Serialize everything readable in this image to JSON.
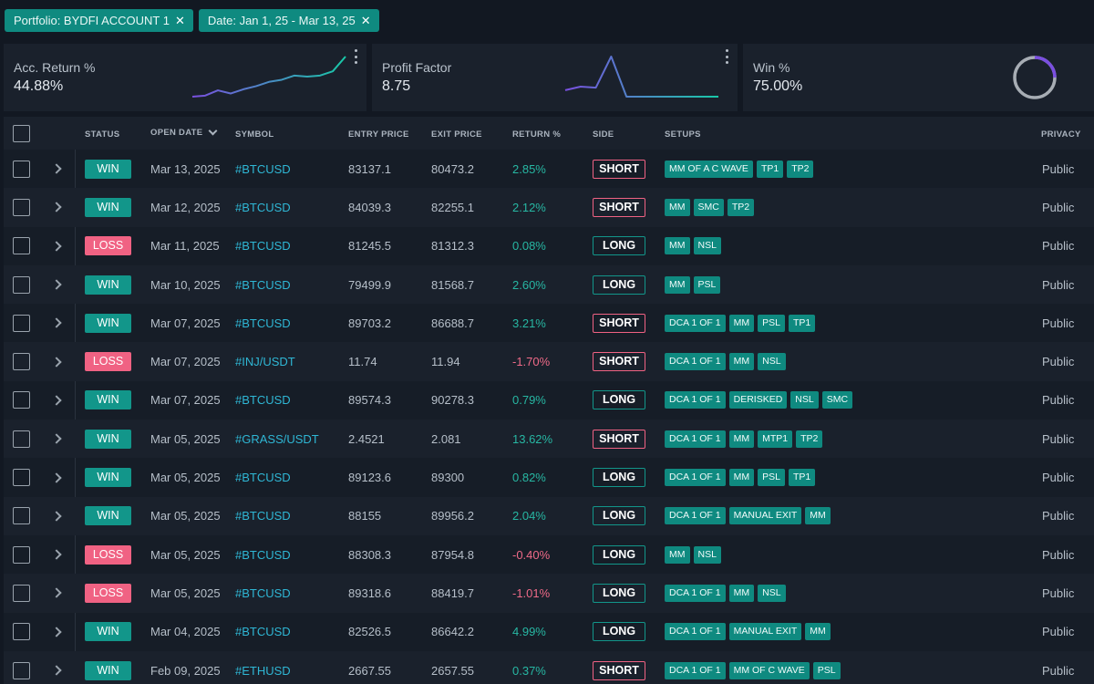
{
  "filters": {
    "portfolio": "Portfolio:  BYDFI ACCOUNT 1",
    "date": "Date:  Jan 1, 25 - Mar 13, 25",
    "close_glyph": "✕"
  },
  "cards": {
    "acc_return": {
      "label": "Acc. Return %",
      "value": "44.88%",
      "sparkline": [
        4,
        5,
        10,
        7,
        11,
        14,
        18,
        20,
        24,
        23,
        24,
        28,
        42
      ]
    },
    "profit_factor": {
      "label": "Profit Factor",
      "value": "8.75",
      "sparkline": [
        1.5,
        2.2,
        2.0,
        8.2,
        0.2,
        0.2,
        0.2,
        0.2,
        0.2,
        0.2,
        0.2
      ]
    },
    "win_rate": {
      "label": "Win %",
      "value": "75.00%",
      "ratio": 0.75
    }
  },
  "table": {
    "headers": {
      "status": "STATUS",
      "open_date": "OPEN DATE",
      "symbol": "SYMBOL",
      "entry_price": "ENTRY PRICE",
      "exit_price": "EXIT PRICE",
      "return": "RETURN %",
      "side": "SIDE",
      "setups": "SETUPS",
      "privacy": "PRIVACY"
    },
    "rows": [
      {
        "status": "WIN",
        "date": "Mar 13, 2025",
        "symbol": "#BTCUSD",
        "entry": "83137.1",
        "exit": "80473.2",
        "ret": "2.85%",
        "side": "SHORT",
        "setups": [
          "MM OF A C WAVE",
          "TP1",
          "TP2"
        ],
        "privacy": "Public"
      },
      {
        "status": "WIN",
        "date": "Mar 12, 2025",
        "symbol": "#BTCUSD",
        "entry": "84039.3",
        "exit": "82255.1",
        "ret": "2.12%",
        "side": "SHORT",
        "setups": [
          "MM",
          "SMC",
          "TP2"
        ],
        "privacy": "Public"
      },
      {
        "status": "LOSS",
        "date": "Mar 11, 2025",
        "symbol": "#BTCUSD",
        "entry": "81245.5",
        "exit": "81312.3",
        "ret": "0.08%",
        "side": "LONG",
        "setups": [
          "MM",
          "NSL"
        ],
        "privacy": "Public"
      },
      {
        "status": "WIN",
        "date": "Mar 10, 2025",
        "symbol": "#BTCUSD",
        "entry": "79499.9",
        "exit": "81568.7",
        "ret": "2.60%",
        "side": "LONG",
        "setups": [
          "MM",
          "PSL"
        ],
        "privacy": "Public"
      },
      {
        "status": "WIN",
        "date": "Mar 07, 2025",
        "symbol": "#BTCUSD",
        "entry": "89703.2",
        "exit": "86688.7",
        "ret": "3.21%",
        "side": "SHORT",
        "setups": [
          "DCA 1 OF 1",
          "MM",
          "PSL",
          "TP1"
        ],
        "privacy": "Public"
      },
      {
        "status": "LOSS",
        "date": "Mar 07, 2025",
        "symbol": "#INJ/USDT",
        "entry": "11.74",
        "exit": "11.94",
        "ret": "-1.70%",
        "side": "SHORT",
        "setups": [
          "DCA 1 OF 1",
          "MM",
          "NSL"
        ],
        "privacy": "Public"
      },
      {
        "status": "WIN",
        "date": "Mar 07, 2025",
        "symbol": "#BTCUSD",
        "entry": "89574.3",
        "exit": "90278.3",
        "ret": "0.79%",
        "side": "LONG",
        "setups": [
          "DCA 1 OF 1",
          "DERISKED",
          "NSL",
          "SMC"
        ],
        "privacy": "Public"
      },
      {
        "status": "WIN",
        "date": "Mar 05, 2025",
        "symbol": "#GRASS/USDT",
        "entry": "2.4521",
        "exit": "2.081",
        "ret": "13.62%",
        "side": "SHORT",
        "setups": [
          "DCA 1 OF 1",
          "MM",
          "MTP1",
          "TP2"
        ],
        "privacy": "Public"
      },
      {
        "status": "WIN",
        "date": "Mar 05, 2025",
        "symbol": "#BTCUSD",
        "entry": "89123.6",
        "exit": "89300",
        "ret": "0.82%",
        "side": "LONG",
        "setups": [
          "DCA 1 OF 1",
          "MM",
          "PSL",
          "TP1"
        ],
        "privacy": "Public"
      },
      {
        "status": "WIN",
        "date": "Mar 05, 2025",
        "symbol": "#BTCUSD",
        "entry": "88155",
        "exit": "89956.2",
        "ret": "2.04%",
        "side": "LONG",
        "setups": [
          "DCA 1 OF 1",
          "MANUAL EXIT",
          "MM"
        ],
        "privacy": "Public"
      },
      {
        "status": "LOSS",
        "date": "Mar 05, 2025",
        "symbol": "#BTCUSD",
        "entry": "88308.3",
        "exit": "87954.8",
        "ret": "-0.40%",
        "side": "LONG",
        "setups": [
          "MM",
          "NSL"
        ],
        "privacy": "Public"
      },
      {
        "status": "LOSS",
        "date": "Mar 05, 2025",
        "symbol": "#BTCUSD",
        "entry": "89318.6",
        "exit": "88419.7",
        "ret": "-1.01%",
        "side": "LONG",
        "setups": [
          "DCA 1 OF 1",
          "MM",
          "NSL"
        ],
        "privacy": "Public"
      },
      {
        "status": "WIN",
        "date": "Mar 04, 2025",
        "symbol": "#BTCUSD",
        "entry": "82526.5",
        "exit": "86642.2",
        "ret": "4.99%",
        "side": "LONG",
        "setups": [
          "DCA 1 OF 1",
          "MANUAL EXIT",
          "MM"
        ],
        "privacy": "Public"
      },
      {
        "status": "WIN",
        "date": "Feb 09, 2025",
        "symbol": "#ETHUSD",
        "entry": "2667.55",
        "exit": "2657.55",
        "ret": "0.37%",
        "side": "SHORT",
        "setups": [
          "DCA 1 OF 1",
          "MM OF C WAVE",
          "PSL"
        ],
        "privacy": "Public"
      }
    ]
  }
}
